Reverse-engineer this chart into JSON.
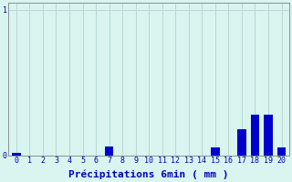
{
  "categories": [
    0,
    1,
    2,
    3,
    4,
    5,
    6,
    7,
    8,
    9,
    10,
    11,
    12,
    13,
    14,
    15,
    16,
    17,
    18,
    19,
    20
  ],
  "values": [
    0.02,
    0,
    0,
    0,
    0,
    0,
    0,
    0.06,
    0,
    0,
    0,
    0,
    0,
    0,
    0,
    0.055,
    0,
    0.18,
    0.28,
    0.28,
    0.055
  ],
  "bar_color": "#0000cc",
  "bg_color": "#d8f5f0",
  "grid_color": "#b8d8d4",
  "xlabel": "Précipitations 6min ( mm )",
  "xlabel_fontsize": 8,
  "ylabel_ticks": [
    0,
    1
  ],
  "ylim": [
    0,
    1.05
  ],
  "xlim": [
    -0.6,
    20.6
  ],
  "tick_label_fontsize": 6,
  "tick_label_color": "#0000bb",
  "bar_width": 0.65
}
